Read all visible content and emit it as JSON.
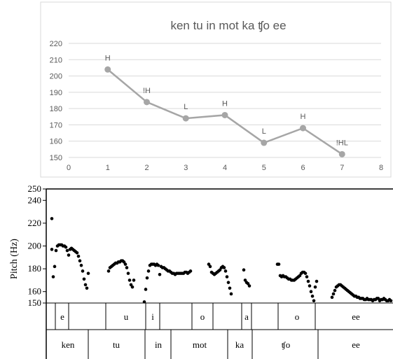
{
  "chart_data": [
    {
      "type": "line",
      "title": "ken tu in mot ka ʧo ee",
      "xlim": [
        0,
        8
      ],
      "ylim": [
        150,
        220
      ],
      "x_ticks": [
        "0",
        "1",
        "2",
        "3",
        "4",
        "5",
        "6",
        "7",
        "8"
      ],
      "y_ticks": [
        "150",
        "160",
        "170",
        "180",
        "190",
        "200",
        "210",
        "220"
      ],
      "grid": true,
      "series": [
        {
          "color": "#a6a6a6",
          "points": [
            {
              "x": 1,
              "y": 204,
              "label": "H"
            },
            {
              "x": 2,
              "y": 184,
              "label": "!H"
            },
            {
              "x": 3,
              "y": 174,
              "label": "L"
            },
            {
              "x": 4,
              "y": 176,
              "label": "H"
            },
            {
              "x": 5,
              "y": 159,
              "label": "L"
            },
            {
              "x": 6,
              "y": 168,
              "label": "H"
            },
            {
              "x": 7,
              "y": 152,
              "label": "!HL"
            }
          ]
        }
      ]
    },
    {
      "type": "scatter",
      "ylabel": "Pitch (Hz)",
      "ylim": [
        150,
        250
      ],
      "y_ticks": [
        "150",
        "160",
        "180",
        "200",
        "220",
        "240",
        "250"
      ],
      "vowel_tier": [
        "e",
        "u",
        "i",
        "o",
        "a",
        "o",
        "ee"
      ],
      "syllable_tier": [
        "ken",
        "tu",
        "in",
        "mot",
        "ka",
        "ʧo",
        "ee"
      ],
      "contours": [
        [
          [
            74,
            197
          ],
          [
            76,
            173
          ],
          [
            78,
            182
          ],
          [
            80,
            196
          ],
          [
            82,
            200
          ],
          [
            84,
            201
          ],
          [
            86,
            201
          ],
          [
            88,
            201
          ],
          [
            90,
            200
          ],
          [
            92,
            200
          ],
          [
            94,
            199
          ],
          [
            96,
            196
          ],
          [
            98,
            192
          ],
          [
            100,
            197
          ],
          [
            102,
            198
          ],
          [
            104,
            197
          ],
          [
            106,
            196
          ],
          [
            108,
            195
          ],
          [
            110,
            194
          ],
          [
            112,
            191
          ],
          [
            114,
            187
          ],
          [
            116,
            183
          ],
          [
            118,
            178
          ],
          [
            120,
            171
          ],
          [
            122,
            166
          ],
          [
            124,
            163
          ],
          [
            126,
            176
          ]
        ],
        [
          [
            74,
            224
          ]
        ],
        [
          [
            155,
            178
          ],
          [
            157,
            181
          ],
          [
            159,
            182
          ],
          [
            161,
            183
          ],
          [
            163,
            184
          ],
          [
            165,
            185
          ],
          [
            167,
            185
          ],
          [
            169,
            186
          ],
          [
            171,
            186
          ],
          [
            173,
            187
          ],
          [
            175,
            187
          ],
          [
            177,
            186
          ],
          [
            179,
            184
          ],
          [
            181,
            181
          ],
          [
            183,
            176
          ],
          [
            185,
            170
          ],
          [
            187,
            166
          ],
          [
            189,
            164
          ],
          [
            191,
            170
          ]
        ],
        [
          [
            206,
            151
          ],
          [
            208,
            162
          ],
          [
            210,
            172
          ],
          [
            212,
            178
          ],
          [
            214,
            183
          ],
          [
            216,
            184
          ],
          [
            218,
            184
          ],
          [
            220,
            184
          ],
          [
            222,
            183
          ],
          [
            224,
            184
          ],
          [
            226,
            183
          ],
          [
            228,
            175
          ],
          [
            230,
            182
          ],
          [
            232,
            181
          ],
          [
            234,
            181
          ],
          [
            236,
            180
          ],
          [
            238,
            179
          ],
          [
            240,
            178
          ],
          [
            242,
            178
          ],
          [
            244,
            177
          ],
          [
            246,
            176
          ],
          [
            248,
            176
          ],
          [
            250,
            175
          ],
          [
            252,
            176
          ],
          [
            254,
            176
          ],
          [
            256,
            176
          ],
          [
            258,
            176
          ],
          [
            260,
            176
          ],
          [
            262,
            176
          ],
          [
            264,
            177
          ],
          [
            266,
            177
          ],
          [
            268,
            176
          ],
          [
            270,
            177
          ],
          [
            272,
            178
          ]
        ],
        [
          [
            298,
            184
          ],
          [
            300,
            182
          ],
          [
            302,
            177
          ],
          [
            304,
            176
          ],
          [
            306,
            175
          ],
          [
            308,
            176
          ],
          [
            310,
            177
          ],
          [
            312,
            178
          ],
          [
            314,
            179
          ],
          [
            316,
            181
          ],
          [
            318,
            182
          ],
          [
            320,
            181
          ],
          [
            322,
            178
          ],
          [
            324,
            173
          ],
          [
            326,
            168
          ],
          [
            328,
            163
          ],
          [
            330,
            158
          ]
        ],
        [
          [
            348,
            179
          ],
          [
            350,
            170
          ],
          [
            352,
            168
          ],
          [
            354,
            167
          ],
          [
            356,
            165
          ]
        ],
        [
          [
            396,
            184
          ],
          [
            398,
            184
          ],
          [
            400,
            174
          ],
          [
            402,
            173
          ],
          [
            404,
            174
          ],
          [
            406,
            173
          ],
          [
            408,
            173
          ],
          [
            410,
            172
          ],
          [
            412,
            171
          ],
          [
            414,
            171
          ],
          [
            416,
            170
          ],
          [
            418,
            170
          ],
          [
            420,
            170
          ],
          [
            422,
            171
          ],
          [
            424,
            172
          ],
          [
            426,
            173
          ],
          [
            428,
            174
          ],
          [
            430,
            176
          ],
          [
            432,
            177
          ],
          [
            434,
            177
          ],
          [
            436,
            176
          ],
          [
            438,
            173
          ],
          [
            440,
            169
          ],
          [
            442,
            165
          ],
          [
            444,
            160
          ],
          [
            446,
            156
          ],
          [
            448,
            152
          ],
          [
            450,
            164
          ],
          [
            452,
            169
          ]
        ],
        [
          [
            474,
            155
          ],
          [
            476,
            158
          ],
          [
            478,
            161
          ],
          [
            480,
            164
          ],
          [
            482,
            165
          ],
          [
            484,
            166
          ],
          [
            486,
            166
          ],
          [
            488,
            165
          ],
          [
            490,
            164
          ],
          [
            492,
            163
          ],
          [
            494,
            162
          ],
          [
            496,
            161
          ],
          [
            498,
            160
          ],
          [
            500,
            159
          ],
          [
            502,
            158
          ],
          [
            504,
            157
          ],
          [
            506,
            156
          ],
          [
            508,
            156
          ],
          [
            510,
            155
          ],
          [
            512,
            155
          ],
          [
            514,
            154
          ],
          [
            516,
            154
          ],
          [
            518,
            154
          ],
          [
            520,
            153
          ],
          [
            522,
            153
          ],
          [
            524,
            154
          ],
          [
            526,
            153
          ],
          [
            528,
            153
          ],
          [
            530,
            153
          ],
          [
            532,
            152
          ],
          [
            534,
            153
          ],
          [
            536,
            153
          ],
          [
            538,
            154
          ],
          [
            540,
            154
          ],
          [
            542,
            152
          ],
          [
            544,
            153
          ],
          [
            546,
            153
          ],
          [
            548,
            154
          ],
          [
            550,
            153
          ],
          [
            552,
            152
          ],
          [
            554,
            152
          ],
          [
            556,
            153
          ],
          [
            558,
            152
          ]
        ]
      ]
    }
  ]
}
